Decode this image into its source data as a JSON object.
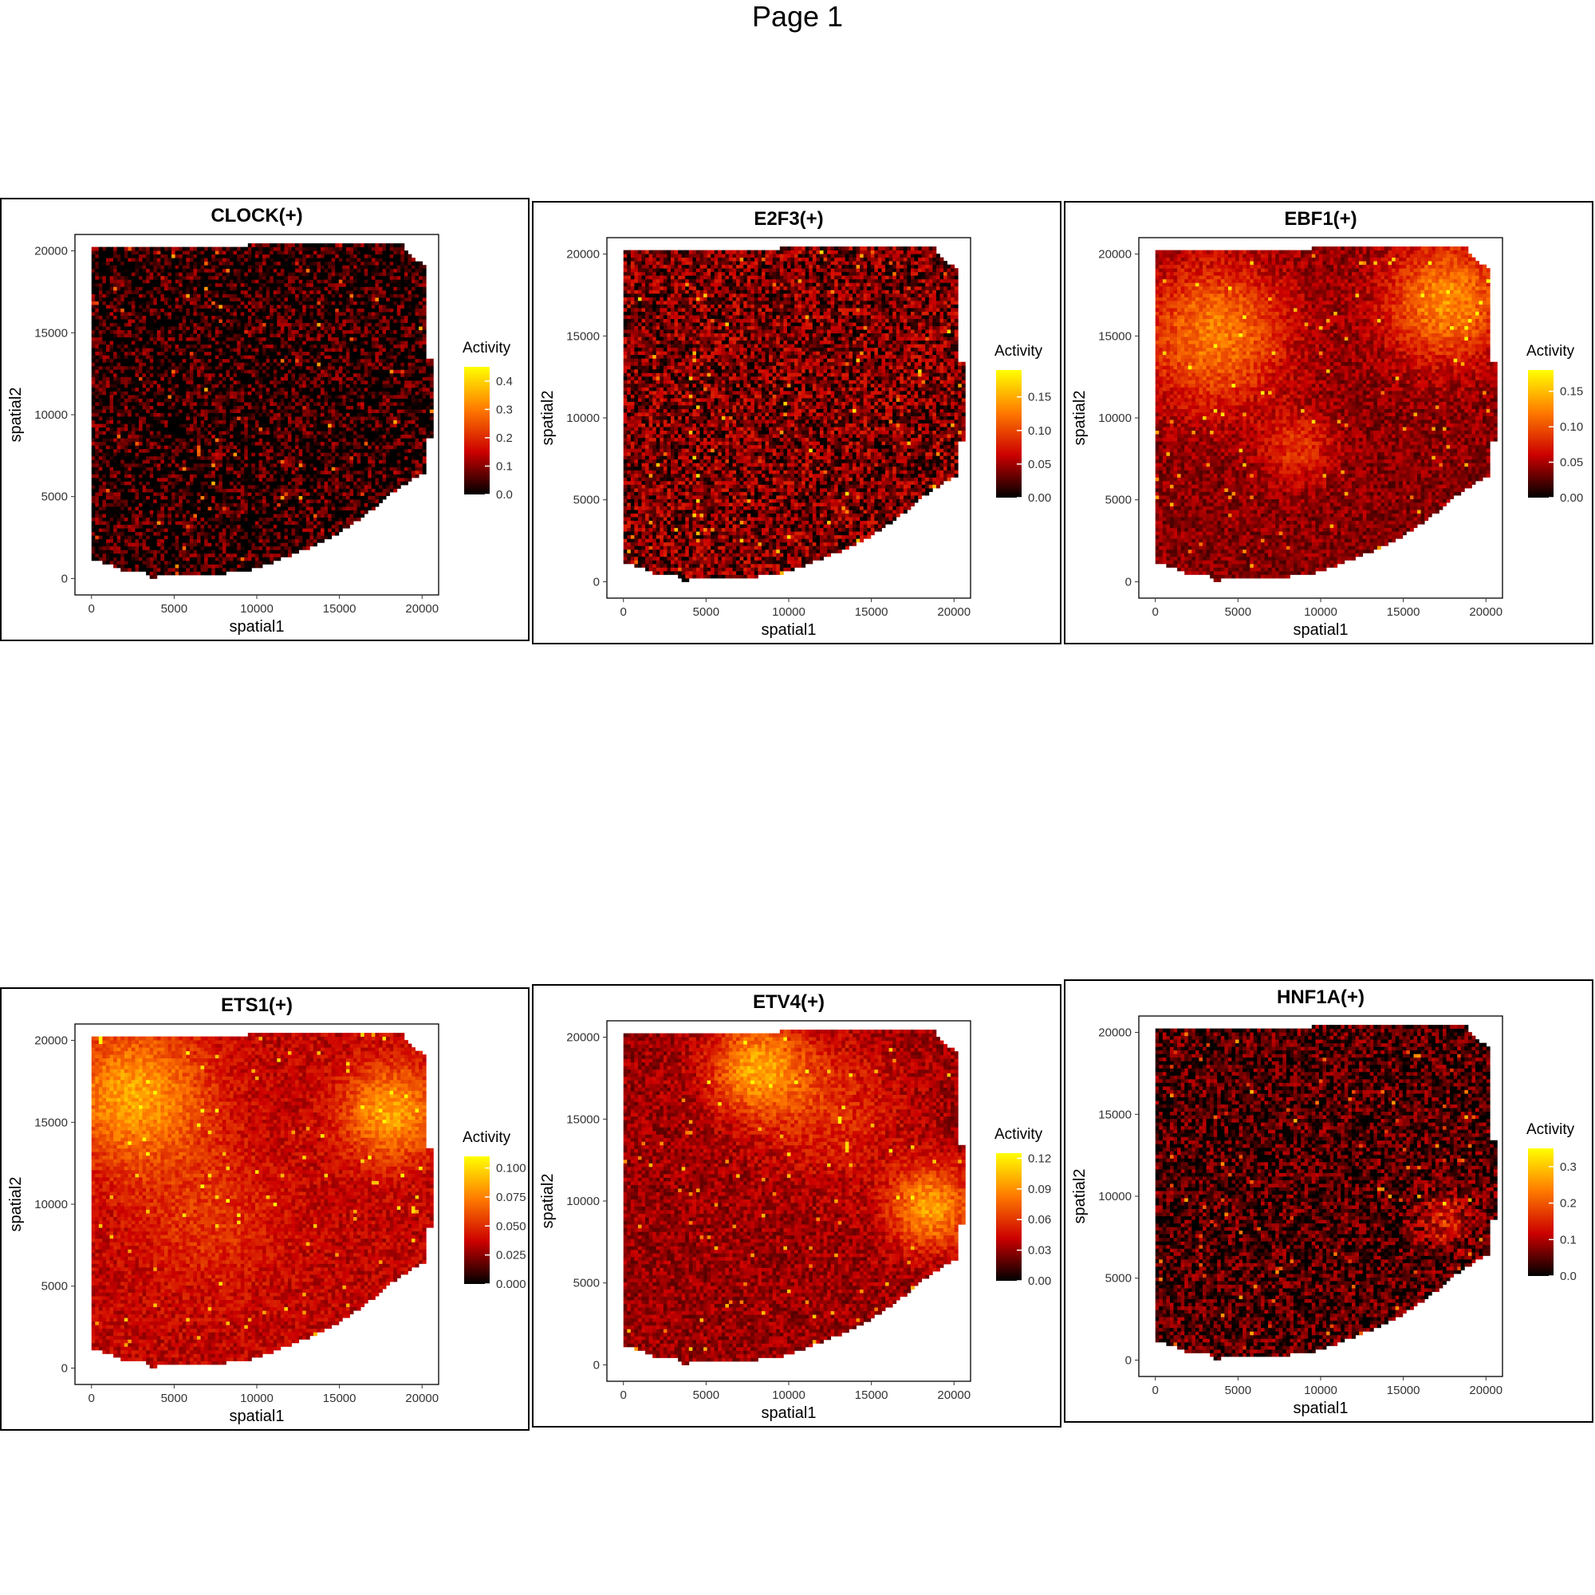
{
  "page": {
    "title": "Page 1"
  },
  "chart_data": [
    {
      "type": "heatmap",
      "title": "CLOCK(+)",
      "xlabel": "spatial1",
      "ylabel": "spatial2",
      "xlim": [
        -1000,
        21000
      ],
      "ylim": [
        -1000,
        21000
      ],
      "x_ticks": [
        "0",
        "5000",
        "10000",
        "15000",
        "20000"
      ],
      "y_ticks": [
        "0",
        "5000",
        "10000",
        "15000",
        "20000"
      ],
      "legend": {
        "title": "Activity",
        "placement": "right",
        "ticks": [
          "0.0",
          "0.1",
          "0.2",
          "0.3",
          "0.4"
        ],
        "range": [
          0,
          0.45
        ]
      },
      "colorscale": [
        "#000000",
        "#cc0000",
        "#ff7a00",
        "#ffff00"
      ],
      "pattern": {
        "base": 0.05,
        "noise": 0.5,
        "hotspots": []
      }
    },
    {
      "type": "heatmap",
      "title": "E2F3(+)",
      "xlabel": "spatial1",
      "ylabel": "spatial2",
      "xlim": [
        -1000,
        21000
      ],
      "ylim": [
        -1000,
        21000
      ],
      "x_ticks": [
        "0",
        "5000",
        "10000",
        "15000",
        "20000"
      ],
      "y_ticks": [
        "0",
        "5000",
        "10000",
        "15000",
        "20000"
      ],
      "legend": {
        "title": "Activity",
        "placement": "right",
        "ticks": [
          "0.00",
          "0.05",
          "0.10",
          "0.15"
        ],
        "range": [
          0,
          0.19
        ]
      },
      "colorscale": [
        "#000000",
        "#cc0000",
        "#ff7a00",
        "#ffff00"
      ],
      "pattern": {
        "base": 0.2,
        "noise": 0.45,
        "hotspots": []
      }
    },
    {
      "type": "heatmap",
      "title": "EBF1(+)",
      "xlabel": "spatial1",
      "ylabel": "spatial2",
      "xlim": [
        -1000,
        21000
      ],
      "ylim": [
        -1000,
        21000
      ],
      "x_ticks": [
        "0",
        "5000",
        "10000",
        "15000",
        "20000"
      ],
      "y_ticks": [
        "0",
        "5000",
        "10000",
        "15000",
        "20000"
      ],
      "legend": {
        "title": "Activity",
        "placement": "right",
        "ticks": [
          "0.00",
          "0.05",
          "0.10",
          "0.15"
        ],
        "range": [
          0,
          0.18
        ]
      },
      "colorscale": [
        "#000000",
        "#cc0000",
        "#ff7a00",
        "#ffff00"
      ],
      "pattern": {
        "base": 0.22,
        "noise": 0.22,
        "hotspots": [
          [
            3500,
            15000,
            3000,
            0.45
          ],
          [
            17500,
            17000,
            2500,
            0.5
          ],
          [
            8500,
            8000,
            1500,
            0.25
          ]
        ]
      }
    },
    {
      "type": "heatmap",
      "title": "ETS1(+)",
      "xlabel": "spatial1",
      "ylabel": "spatial2",
      "xlim": [
        -1000,
        21000
      ],
      "ylim": [
        -1000,
        21000
      ],
      "x_ticks": [
        "0",
        "5000",
        "10000",
        "15000",
        "20000"
      ],
      "y_ticks": [
        "0",
        "5000",
        "10000",
        "15000",
        "20000"
      ],
      "legend": {
        "title": "Activity",
        "placement": "right",
        "ticks": [
          "0.000",
          "0.025",
          "0.050",
          "0.075",
          "0.100"
        ],
        "range": [
          0,
          0.11
        ]
      },
      "colorscale": [
        "#000000",
        "#cc0000",
        "#ff7a00",
        "#ffff00"
      ],
      "pattern": {
        "base": 0.32,
        "noise": 0.2,
        "hotspots": [
          [
            2500,
            16500,
            3000,
            0.45
          ],
          [
            18000,
            15500,
            2000,
            0.45
          ],
          [
            7000,
            9000,
            3000,
            0.15
          ]
        ]
      }
    },
    {
      "type": "heatmap",
      "title": "ETV4(+)",
      "xlabel": "spatial1",
      "ylabel": "spatial2",
      "xlim": [
        -1000,
        21000
      ],
      "ylim": [
        -1000,
        21000
      ],
      "x_ticks": [
        "0",
        "5000",
        "10000",
        "15000",
        "20000"
      ],
      "y_ticks": [
        "0",
        "5000",
        "10000",
        "15000",
        "20000"
      ],
      "legend": {
        "title": "Activity",
        "placement": "right",
        "ticks": [
          "0.00",
          "0.03",
          "0.06",
          "0.09",
          "0.12"
        ],
        "range": [
          0,
          0.125
        ]
      },
      "colorscale": [
        "#000000",
        "#cc0000",
        "#ff7a00",
        "#ffff00"
      ],
      "pattern": {
        "base": 0.25,
        "noise": 0.22,
        "hotspots": [
          [
            8000,
            18000,
            2000,
            0.5
          ],
          [
            18500,
            9500,
            1800,
            0.5
          ],
          [
            12500,
            15500,
            3000,
            0.2
          ]
        ]
      }
    },
    {
      "type": "heatmap",
      "title": "HNF1A(+)",
      "xlabel": "spatial1",
      "ylabel": "spatial2",
      "xlim": [
        -1000,
        21000
      ],
      "ylim": [
        -1000,
        21000
      ],
      "x_ticks": [
        "0",
        "5000",
        "10000",
        "15000",
        "20000"
      ],
      "y_ticks": [
        "0",
        "5000",
        "10000",
        "15000",
        "20000"
      ],
      "legend": {
        "title": "Activity",
        "placement": "right",
        "ticks": [
          "0.0",
          "0.1",
          "0.2",
          "0.3"
        ],
        "range": [
          0,
          0.35
        ]
      },
      "colorscale": [
        "#000000",
        "#cc0000",
        "#ff7a00",
        "#ffff00"
      ],
      "pattern": {
        "base": 0.12,
        "noise": 0.4,
        "hotspots": [
          [
            17500,
            8500,
            1200,
            0.3
          ]
        ]
      }
    }
  ]
}
